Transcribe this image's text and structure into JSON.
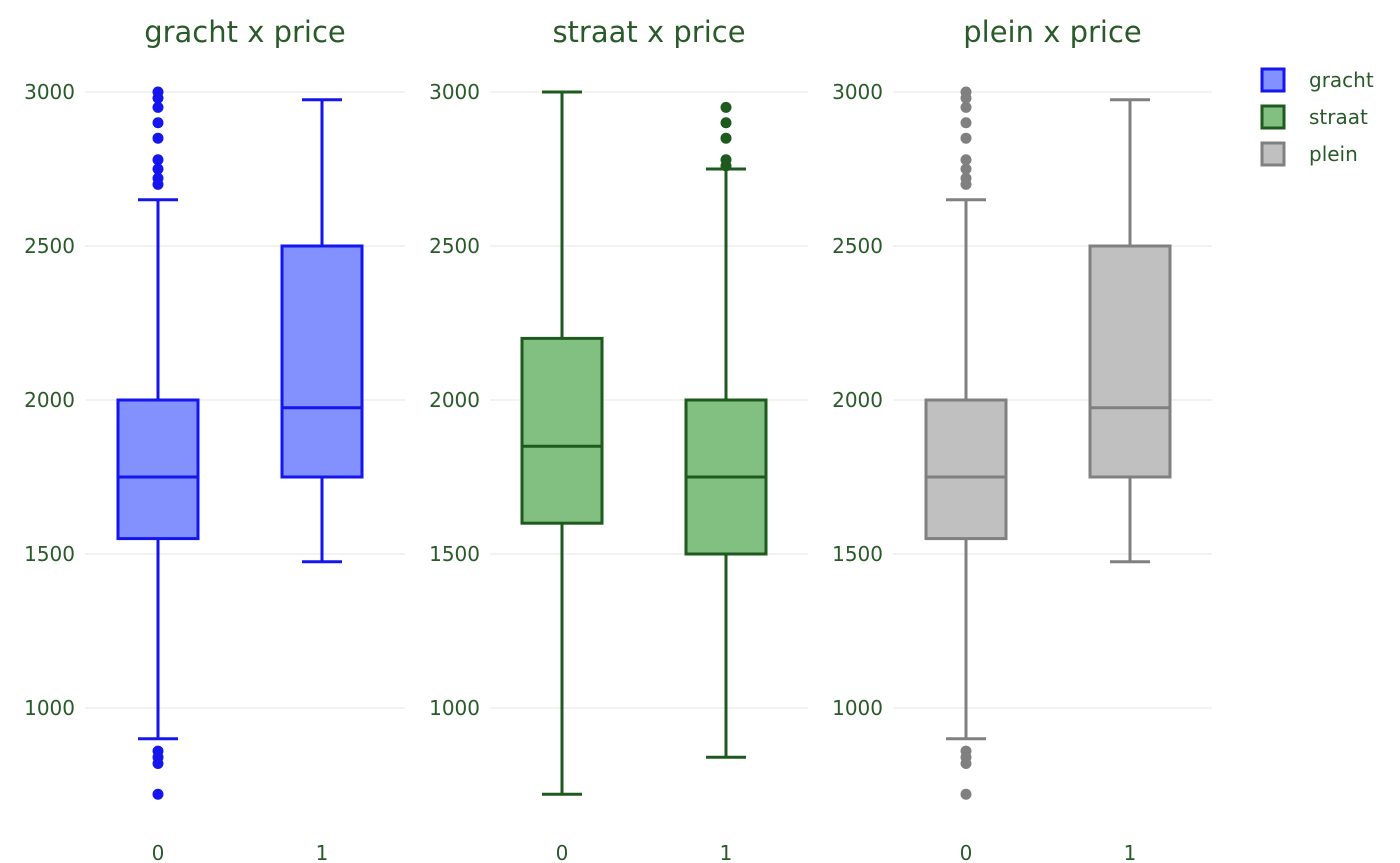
{
  "colors": {
    "text": "#2a5a2a",
    "grid": "#e6e6e6"
  },
  "legend": {
    "items": [
      {
        "name": "gracht",
        "line": "#1515ee",
        "fill": "#8391ff"
      },
      {
        "name": "straat",
        "line": "#1e5a1e",
        "fill": "#82c082"
      },
      {
        "name": "plein",
        "line": "#808080",
        "fill": "#c0c0c0"
      }
    ]
  },
  "chart_data": [
    {
      "type": "box",
      "title": "gracht x price",
      "categories": [
        "0",
        "1"
      ],
      "y_ticks": [
        1000,
        1500,
        2000,
        2500,
        3000
      ],
      "ylim": [
        650,
        3050
      ],
      "grid": true,
      "line_color": "#1515ee",
      "fill_color": "#8391ff",
      "boxes": [
        {
          "category": "0",
          "q1": 1550,
          "median": 1750,
          "q3": 2000,
          "lower_whisker": 900,
          "upper_whisker": 2650,
          "outliers": [
            3000,
            2980,
            2950,
            2900,
            2850,
            2780,
            2750,
            2720,
            2700,
            860,
            840,
            820,
            720
          ]
        },
        {
          "category": "1",
          "q1": 1750,
          "median": 1975,
          "q3": 2500,
          "lower_whisker": 1475,
          "upper_whisker": 2975,
          "outliers": []
        }
      ]
    },
    {
      "type": "box",
      "title": "straat x price",
      "categories": [
        "0",
        "1"
      ],
      "y_ticks": [
        1000,
        1500,
        2000,
        2500,
        3000
      ],
      "ylim": [
        650,
        3050
      ],
      "grid": true,
      "line_color": "#1e5a1e",
      "fill_color": "#82c082",
      "boxes": [
        {
          "category": "0",
          "q1": 1600,
          "median": 1850,
          "q3": 2200,
          "lower_whisker": 720,
          "upper_whisker": 3000,
          "outliers": []
        },
        {
          "category": "1",
          "q1": 1500,
          "median": 1750,
          "q3": 2000,
          "lower_whisker": 840,
          "upper_whisker": 2750,
          "outliers": [
            2950,
            2900,
            2850,
            2780,
            2760
          ]
        }
      ]
    },
    {
      "type": "box",
      "title": "plein x price",
      "categories": [
        "0",
        "1"
      ],
      "y_ticks": [
        1000,
        1500,
        2000,
        2500,
        3000
      ],
      "ylim": [
        650,
        3050
      ],
      "grid": true,
      "line_color": "#808080",
      "fill_color": "#c0c0c0",
      "boxes": [
        {
          "category": "0",
          "q1": 1550,
          "median": 1750,
          "q3": 2000,
          "lower_whisker": 900,
          "upper_whisker": 2650,
          "outliers": [
            3000,
            2980,
            2950,
            2900,
            2850,
            2780,
            2750,
            2720,
            2700,
            860,
            840,
            820,
            720
          ]
        },
        {
          "category": "1",
          "q1": 1750,
          "median": 1975,
          "q3": 2500,
          "lower_whisker": 1475,
          "upper_whisker": 2975,
          "outliers": []
        }
      ]
    }
  ]
}
